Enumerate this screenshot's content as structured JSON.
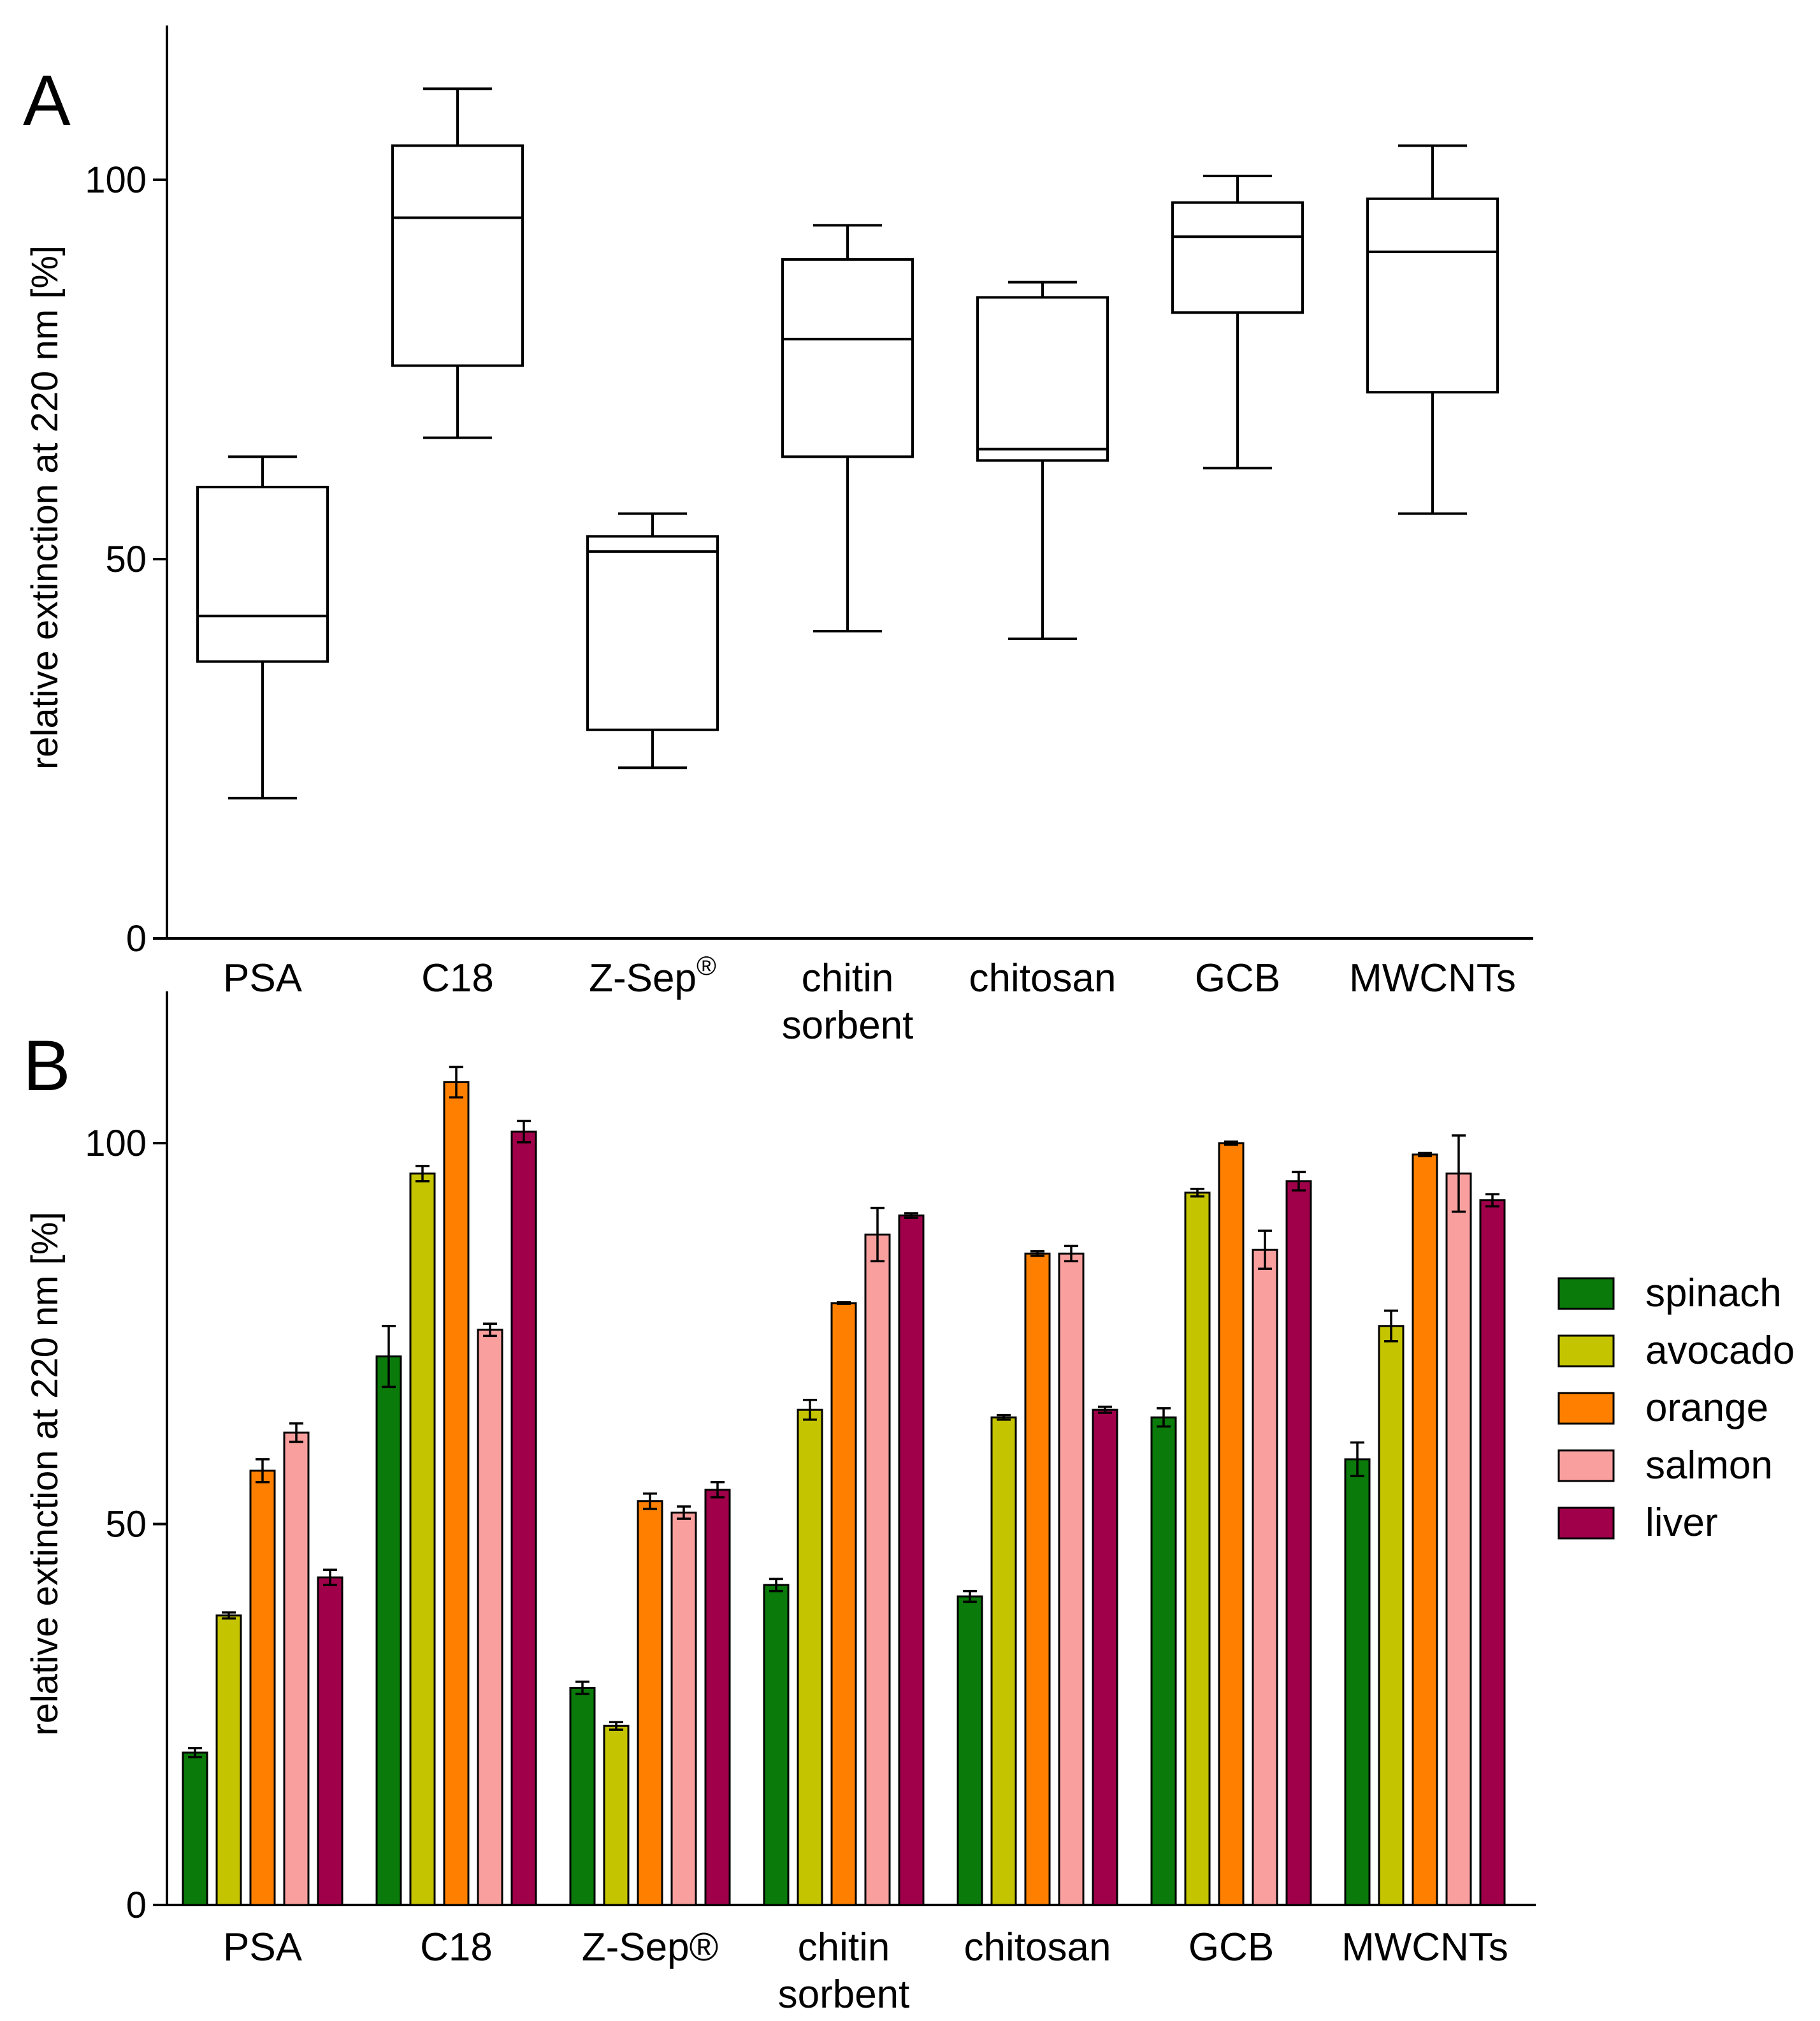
{
  "chart_data": [
    {
      "panel": "A",
      "type": "boxplot",
      "title": "",
      "xlabel": "",
      "ylabel": "relative extinction at 220 nm  [%]",
      "ylim": [
        0,
        120
      ],
      "yticks": [
        0,
        50,
        100
      ],
      "categories": [
        {
          "lines": [
            "PSA"
          ]
        },
        {
          "lines": [
            "C18"
          ]
        },
        {
          "lines": [
            "Z-Sep"
          ],
          "superscript": "®"
        },
        {
          "lines": [
            "chitin",
            "sorbent"
          ]
        },
        {
          "lines": [
            "chitosan"
          ]
        },
        {
          "lines": [
            "GCB"
          ]
        },
        {
          "lines": [
            "MWCNTs"
          ]
        }
      ],
      "boxes": [
        {
          "min": 18.5,
          "q1": 36.5,
          "median": 42.5,
          "q3": 59.5,
          "max": 63.5
        },
        {
          "min": 66,
          "q1": 75.5,
          "median": 95,
          "q3": 104.5,
          "max": 112
        },
        {
          "min": 22.5,
          "q1": 27.5,
          "median": 51,
          "q3": 53,
          "max": 56
        },
        {
          "min": 40.5,
          "q1": 63.5,
          "median": 79,
          "q3": 89.5,
          "max": 94
        },
        {
          "min": 39.5,
          "q1": 63,
          "median": 64.5,
          "q3": 84.5,
          "max": 86.5
        },
        {
          "min": 62,
          "q1": 82.5,
          "median": 92.5,
          "q3": 97,
          "max": 100.5
        },
        {
          "min": 56,
          "q1": 72,
          "median": 90.5,
          "q3": 97.5,
          "max": 104.5
        }
      ]
    },
    {
      "panel": "B",
      "type": "bar",
      "title": "",
      "xlabel": "",
      "ylabel": "relative extinction at 220 nm [%]",
      "ylim": [
        0,
        120
      ],
      "yticks": [
        0,
        50,
        100
      ],
      "categories": [
        {
          "lines": [
            "PSA"
          ]
        },
        {
          "lines": [
            "C18"
          ]
        },
        {
          "lines": [
            "Z-Sep®"
          ]
        },
        {
          "lines": [
            "chitin",
            "sorbent"
          ]
        },
        {
          "lines": [
            "chitosan"
          ]
        },
        {
          "lines": [
            "GCB"
          ]
        },
        {
          "lines": [
            "MWCNTs"
          ]
        }
      ],
      "legend_position": "right",
      "series": [
        {
          "name": "spinach",
          "color": "#0a7a0a",
          "values": [
            20,
            72,
            28.5,
            42,
            40.5,
            64,
            58.5
          ],
          "errors": [
            0.6,
            4,
            0.8,
            0.8,
            0.7,
            1.2,
            2.2
          ]
        },
        {
          "name": "avocado",
          "color": "#c4c400",
          "values": [
            38,
            96,
            23.5,
            65,
            64,
            93.5,
            76
          ],
          "errors": [
            0.4,
            1,
            0.5,
            1.3,
            0.3,
            0.5,
            2
          ]
        },
        {
          "name": "orange",
          "color": "#ff8000",
          "values": [
            57,
            108,
            53,
            79,
            85.5,
            100,
            98.5
          ],
          "errors": [
            1.5,
            2,
            1,
            0.1,
            0.3,
            0.2,
            0.2
          ]
        },
        {
          "name": "salmon",
          "color": "#f9a09f",
          "values": [
            62,
            75.5,
            51.5,
            88,
            85.5,
            86,
            96
          ],
          "errors": [
            1.2,
            0.8,
            0.8,
            3.5,
            1,
            2.5,
            5
          ]
        },
        {
          "name": "liver",
          "color": "#a0004a",
          "values": [
            43,
            101.5,
            54.5,
            90.5,
            65,
            95,
            92.5
          ],
          "errors": [
            1,
            1.4,
            1,
            0.3,
            0.4,
            1.2,
            0.8
          ]
        }
      ]
    }
  ]
}
